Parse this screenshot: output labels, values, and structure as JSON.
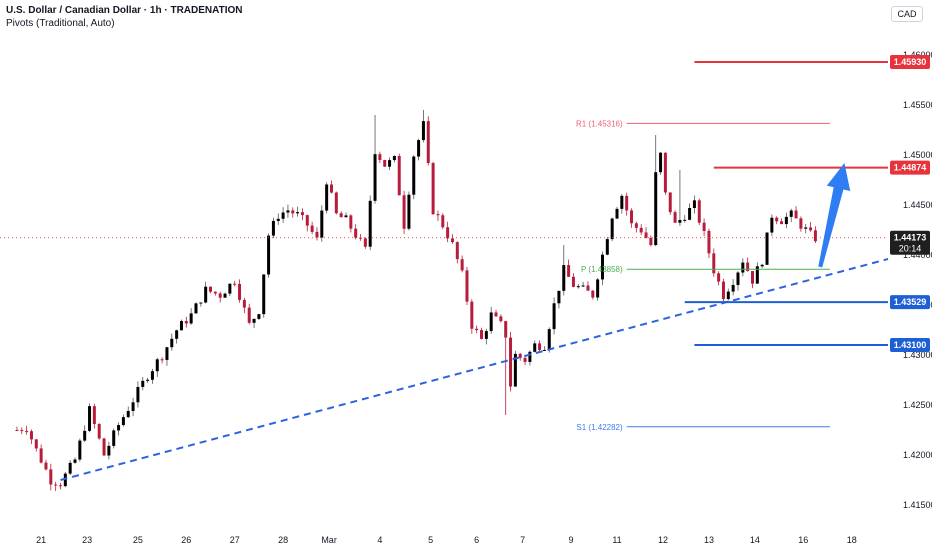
{
  "header": {
    "title": "U.S. Dollar / Canadian Dollar · 1h · TRADENATION",
    "indicator": "Pivots (Traditional, Auto)",
    "currency": "CAD"
  },
  "colors": {
    "up": "#000000",
    "down": "#b71c3c",
    "wick": "#555555",
    "resistance": "#e8323c",
    "support": "#1f5fd6",
    "trendline": "#2d63e0",
    "pivot_p": "#4caf50",
    "pivot_r": "#f06070",
    "pivot_s": "#3f7cf0",
    "arrow": "#2f7df3",
    "price_line": "#f23645"
  },
  "chart_data": {
    "type": "candlestick",
    "ylim": [
      1.4125,
      1.4625
    ],
    "y_ticks": [
      "1.46000",
      "1.45500",
      "1.45000",
      "1.44500",
      "1.44000",
      "1.43500",
      "1.43000",
      "1.42500",
      "1.42000",
      "1.41500"
    ],
    "y_tick_values": [
      1.46,
      1.455,
      1.45,
      1.445,
      1.44,
      1.435,
      1.43,
      1.425,
      1.42,
      1.415
    ],
    "x_ticks": [
      "21",
      "23",
      "25",
      "26",
      "27",
      "28",
      "Mar",
      "4",
      "5",
      "6",
      "7",
      "9",
      "11",
      "12",
      "13",
      "14",
      "16",
      "18"
    ],
    "x_tick_index": [
      5,
      14.5,
      25,
      35,
      45,
      55,
      64.5,
      75,
      85.5,
      95,
      104.5,
      114.5,
      124,
      133.5,
      143,
      152.5,
      162.5,
      172.5
    ],
    "x_range": [
      -3.5,
      180
    ],
    "anchors": [
      {
        "i": 0,
        "p": 1.4225
      },
      {
        "i": 2,
        "p": 1.4228
      },
      {
        "i": 4,
        "p": 1.4205
      },
      {
        "i": 7,
        "p": 1.4175
      },
      {
        "i": 9,
        "p": 1.4172
      },
      {
        "i": 12,
        "p": 1.4195
      },
      {
        "i": 15,
        "p": 1.4245
      },
      {
        "i": 18,
        "p": 1.42
      },
      {
        "i": 21,
        "p": 1.423
      },
      {
        "i": 24,
        "p": 1.4255
      },
      {
        "i": 27,
        "p": 1.428
      },
      {
        "i": 30,
        "p": 1.43
      },
      {
        "i": 33,
        "p": 1.4325
      },
      {
        "i": 36,
        "p": 1.434
      },
      {
        "i": 39,
        "p": 1.4365
      },
      {
        "i": 42,
        "p": 1.436
      },
      {
        "i": 45,
        "p": 1.4375
      },
      {
        "i": 48,
        "p": 1.433
      },
      {
        "i": 50,
        "p": 1.4345
      },
      {
        "i": 52,
        "p": 1.442
      },
      {
        "i": 54,
        "p": 1.444
      },
      {
        "i": 56,
        "p": 1.4445
      },
      {
        "i": 58,
        "p": 1.444
      },
      {
        "i": 60,
        "p": 1.443
      },
      {
        "i": 62,
        "p": 1.4415
      },
      {
        "i": 64,
        "p": 1.4475
      },
      {
        "i": 66,
        "p": 1.444
      },
      {
        "i": 68,
        "p": 1.4435
      },
      {
        "i": 70,
        "p": 1.442
      },
      {
        "i": 72,
        "p": 1.4405
      },
      {
        "i": 74,
        "p": 1.4505
      },
      {
        "i": 76,
        "p": 1.449
      },
      {
        "i": 78,
        "p": 1.4495
      },
      {
        "i": 80,
        "p": 1.443
      },
      {
        "i": 82,
        "p": 1.45
      },
      {
        "i": 84,
        "p": 1.453
      },
      {
        "i": 86,
        "p": 1.4445
      },
      {
        "i": 88,
        "p": 1.443
      },
      {
        "i": 90,
        "p": 1.441
      },
      {
        "i": 92,
        "p": 1.438
      },
      {
        "i": 94,
        "p": 1.433
      },
      {
        "i": 96,
        "p": 1.4315
      },
      {
        "i": 98,
        "p": 1.434
      },
      {
        "i": 100,
        "p": 1.433
      },
      {
        "i": 101,
        "p": 1.432
      },
      {
        "i": 102,
        "p": 1.427
      },
      {
        "i": 103,
        "p": 1.43
      },
      {
        "i": 105,
        "p": 1.4295
      },
      {
        "i": 107,
        "p": 1.431
      },
      {
        "i": 109,
        "p": 1.431
      },
      {
        "i": 111,
        "p": 1.435
      },
      {
        "i": 113,
        "p": 1.4385
      },
      {
        "i": 115,
        "p": 1.437
      },
      {
        "i": 117,
        "p": 1.4365
      },
      {
        "i": 119,
        "p": 1.436
      },
      {
        "i": 121,
        "p": 1.44
      },
      {
        "i": 123,
        "p": 1.444
      },
      {
        "i": 125,
        "p": 1.446
      },
      {
        "i": 127,
        "p": 1.443
      },
      {
        "i": 129,
        "p": 1.4425
      },
      {
        "i": 131,
        "p": 1.441
      },
      {
        "i": 132,
        "p": 1.448
      },
      {
        "i": 133,
        "p": 1.45
      },
      {
        "i": 134,
        "p": 1.446
      },
      {
        "i": 136,
        "p": 1.443
      },
      {
        "i": 138,
        "p": 1.444
      },
      {
        "i": 140,
        "p": 1.445
      },
      {
        "i": 142,
        "p": 1.442
      },
      {
        "i": 144,
        "p": 1.4385
      },
      {
        "i": 146,
        "p": 1.436
      },
      {
        "i": 148,
        "p": 1.4375
      },
      {
        "i": 150,
        "p": 1.4395
      },
      {
        "i": 152,
        "p": 1.4375
      },
      {
        "i": 154,
        "p": 1.4395
      },
      {
        "i": 156,
        "p": 1.444
      },
      {
        "i": 158,
        "p": 1.4435
      },
      {
        "i": 160,
        "p": 1.444
      },
      {
        "i": 162,
        "p": 1.443
      },
      {
        "i": 164,
        "p": 1.442
      },
      {
        "i": 165,
        "p": 1.4417
      }
    ],
    "candle_count": 166,
    "spikes": [
      {
        "i": 101,
        "low": 1.424
      },
      {
        "i": 74,
        "high": 1.454
      },
      {
        "i": 84,
        "high": 1.4545
      },
      {
        "i": 132,
        "high": 1.452
      },
      {
        "i": 113,
        "high": 1.441
      },
      {
        "i": 137,
        "high": 1.4485
      }
    ],
    "pivots": [
      {
        "label": "R1 (1.45316)",
        "value": 1.45316,
        "from": 126,
        "to": 168,
        "role": "r"
      },
      {
        "label": "P (1.43858)",
        "value": 1.43858,
        "from": 126,
        "to": 168,
        "role": "p"
      },
      {
        "label": "S1 (1.42282)",
        "value": 1.42282,
        "from": 126,
        "to": 168,
        "role": "s"
      }
    ],
    "levels": [
      {
        "label": "1.45930",
        "value": 1.4593,
        "from": 140,
        "role": "resistance"
      },
      {
        "label": "1.44874",
        "value": 1.44874,
        "from": 144,
        "role": "resistance"
      },
      {
        "label": "1.43529",
        "value": 1.43529,
        "from": 138,
        "role": "support"
      },
      {
        "label": "1.43100",
        "value": 1.431,
        "from": 140,
        "role": "support"
      }
    ],
    "current_price": {
      "label": "1.44173",
      "value": 1.44173,
      "countdown": "20:14"
    },
    "trendline": {
      "from": [
        9,
        1.4175
      ],
      "to": [
        180,
        1.4396
      ]
    },
    "arrow": {
      "from": [
        166,
        1.4388
      ],
      "to": [
        171,
        1.4492
      ]
    }
  }
}
